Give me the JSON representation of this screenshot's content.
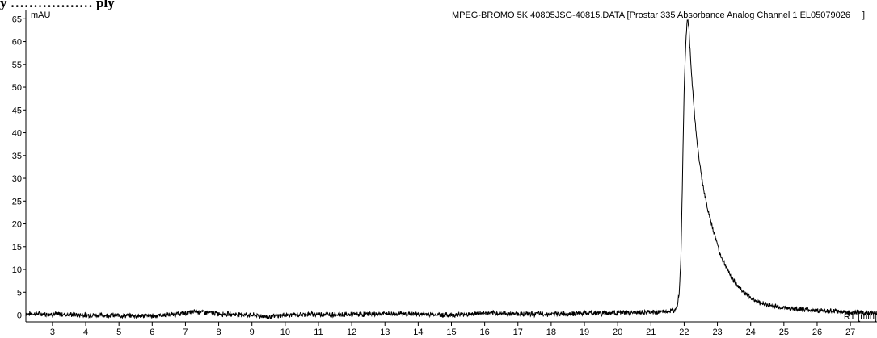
{
  "header": {
    "clipped_title": "y ……………… ply",
    "y_unit": "mAU",
    "trace_title": "MPEG-BROMO 5K 40805JSG-40815.DATA [Prostar 335 Absorbance Analog Channel 1 EL05079026",
    "trace_title_close": "]"
  },
  "colors": {
    "trace": "#000000",
    "axis": "#000000",
    "background": "#ffffff"
  },
  "chart_data": {
    "type": "line",
    "ylabel": "mAU",
    "xlabel": "RT [min]",
    "xlim": [
      2.2,
      27.8
    ],
    "ylim": [
      -1.5,
      67
    ],
    "x_ticks": [
      3,
      4,
      5,
      6,
      7,
      8,
      9,
      10,
      11,
      12,
      13,
      14,
      15,
      16,
      17,
      18,
      19,
      20,
      21,
      22,
      23,
      24,
      25,
      26,
      27
    ],
    "y_ticks": [
      0,
      5,
      10,
      15,
      20,
      25,
      30,
      35,
      40,
      45,
      50,
      55,
      60,
      65
    ],
    "grid": false,
    "series": [
      {
        "x": [
          2.2,
          3.0,
          4.0,
          5.0,
          6.0,
          7.0,
          7.3,
          8.0,
          9.0,
          9.5,
          10.0,
          11.0,
          12.0,
          13.0,
          14.0,
          15.0,
          16.0,
          17.0,
          18.0,
          19.0,
          20.0,
          21.0,
          21.5,
          21.7,
          21.8,
          21.85,
          21.9,
          21.95,
          22.0,
          22.05,
          22.1,
          22.15,
          22.2,
          22.3,
          22.4,
          22.5,
          22.6,
          22.7,
          22.8,
          22.9,
          23.0,
          23.1,
          23.2,
          23.3,
          23.4,
          23.5,
          23.6,
          23.8,
          24.0,
          24.2,
          24.5,
          25.0,
          25.5,
          26.0,
          26.5,
          27.0,
          27.5,
          27.8
        ],
        "y": [
          0.3,
          0.2,
          0.0,
          -0.1,
          -0.2,
          0.4,
          0.8,
          0.3,
          0.0,
          -0.4,
          0.0,
          0.2,
          0.1,
          0.3,
          0.2,
          0.0,
          0.4,
          0.3,
          0.2,
          0.4,
          0.5,
          0.6,
          0.8,
          1.0,
          2.5,
          5.0,
          12.0,
          30.0,
          50.0,
          60.0,
          65.5,
          62.0,
          55.0,
          45.0,
          37.0,
          31.5,
          27.0,
          23.5,
          20.5,
          18.0,
          15.5,
          13.0,
          11.5,
          10.0,
          8.5,
          7.5,
          6.5,
          5.0,
          3.8,
          3.0,
          2.2,
          1.6,
          1.3,
          1.0,
          0.8,
          0.6,
          0.5,
          0.5
        ]
      }
    ]
  }
}
